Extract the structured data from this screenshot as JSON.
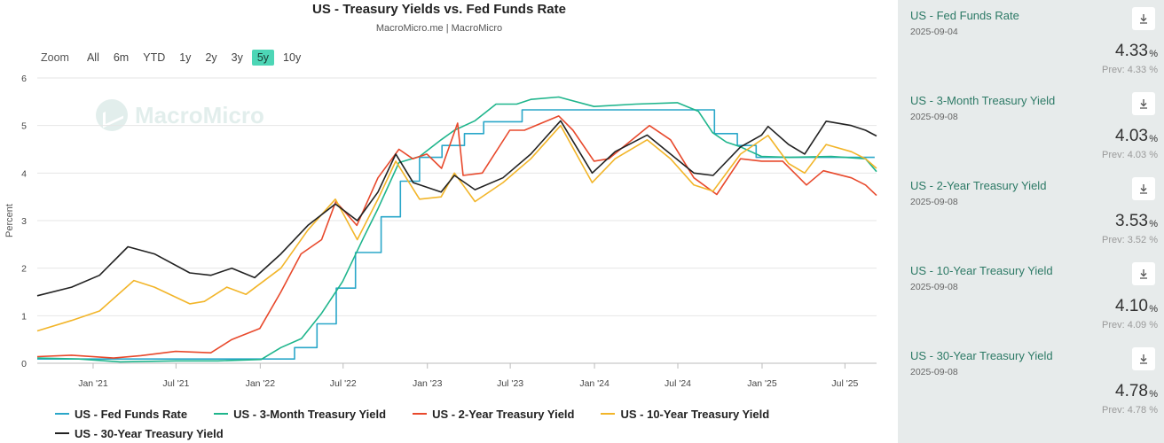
{
  "chart_data": {
    "type": "line",
    "title": "US - Treasury Yields vs. Fed Funds Rate",
    "subtitle": "MacroMicro.me | MacroMicro",
    "ylabel": "Percent",
    "ylim": [
      0,
      6
    ],
    "yticks": [
      0,
      1,
      2,
      3,
      4,
      5,
      6
    ],
    "xlim": [
      "2020-09-01",
      "2025-09-08"
    ],
    "xticks": [
      {
        "date": "2021-01-01",
        "label": "Jan '21"
      },
      {
        "date": "2021-07-01",
        "label": "Jul '21"
      },
      {
        "date": "2022-01-01",
        "label": "Jan '22"
      },
      {
        "date": "2022-07-01",
        "label": "Jul '22"
      },
      {
        "date": "2023-01-01",
        "label": "Jan '23"
      },
      {
        "date": "2023-07-01",
        "label": "Jul '23"
      },
      {
        "date": "2024-01-01",
        "label": "Jan '24"
      },
      {
        "date": "2024-07-01",
        "label": "Jul '24"
      },
      {
        "date": "2025-01-01",
        "label": "Jan '25"
      },
      {
        "date": "2025-07-01",
        "label": "Jul '25"
      }
    ],
    "grid": true,
    "legend": "bottom",
    "series": [
      {
        "name": "US - Fed Funds Rate",
        "color": "#2aa7c9",
        "step": true,
        "points": [
          [
            "2020-09-01",
            0.09
          ],
          [
            "2022-03-17",
            0.33
          ],
          [
            "2022-05-05",
            0.83
          ],
          [
            "2022-06-16",
            1.58
          ],
          [
            "2022-07-28",
            2.33
          ],
          [
            "2022-09-22",
            3.08
          ],
          [
            "2022-11-03",
            3.83
          ],
          [
            "2022-12-15",
            4.33
          ],
          [
            "2023-02-02",
            4.58
          ],
          [
            "2023-03-23",
            4.83
          ],
          [
            "2023-05-04",
            5.08
          ],
          [
            "2023-07-27",
            5.33
          ],
          [
            "2024-09-19",
            4.83
          ],
          [
            "2024-11-08",
            4.58
          ],
          [
            "2024-12-19",
            4.33
          ],
          [
            "2025-09-04",
            4.33
          ]
        ]
      },
      {
        "name": "US - 3-Month Treasury Yield",
        "color": "#1fb58c",
        "points": [
          [
            "2020-09-01",
            0.11
          ],
          [
            "2020-12-01",
            0.09
          ],
          [
            "2021-03-01",
            0.03
          ],
          [
            "2021-07-01",
            0.05
          ],
          [
            "2021-10-01",
            0.05
          ],
          [
            "2022-01-03",
            0.08
          ],
          [
            "2022-02-15",
            0.33
          ],
          [
            "2022-04-01",
            0.52
          ],
          [
            "2022-05-15",
            1.05
          ],
          [
            "2022-06-30",
            1.72
          ],
          [
            "2022-08-15",
            2.65
          ],
          [
            "2022-09-15",
            3.25
          ],
          [
            "2022-10-31",
            4.22
          ],
          [
            "2022-12-15",
            4.35
          ],
          [
            "2023-01-31",
            4.7
          ],
          [
            "2023-03-01",
            4.9
          ],
          [
            "2023-04-15",
            5.1
          ],
          [
            "2023-05-31",
            5.45
          ],
          [
            "2023-07-15",
            5.45
          ],
          [
            "2023-08-15",
            5.55
          ],
          [
            "2023-10-15",
            5.6
          ],
          [
            "2023-12-31",
            5.4
          ],
          [
            "2024-03-31",
            5.45
          ],
          [
            "2024-06-30",
            5.48
          ],
          [
            "2024-08-15",
            5.3
          ],
          [
            "2024-09-15",
            4.85
          ],
          [
            "2024-10-15",
            4.65
          ],
          [
            "2024-11-15",
            4.55
          ],
          [
            "2024-12-31",
            4.35
          ],
          [
            "2025-03-01",
            4.33
          ],
          [
            "2025-06-01",
            4.35
          ],
          [
            "2025-08-15",
            4.3
          ],
          [
            "2025-09-08",
            4.03
          ]
        ]
      },
      {
        "name": "US - 2-Year Treasury Yield",
        "color": "#e8492c",
        "points": [
          [
            "2020-09-01",
            0.14
          ],
          [
            "2020-11-15",
            0.17
          ],
          [
            "2021-02-15",
            0.11
          ],
          [
            "2021-04-15",
            0.16
          ],
          [
            "2021-06-30",
            0.25
          ],
          [
            "2021-09-15",
            0.22
          ],
          [
            "2021-10-31",
            0.5
          ],
          [
            "2021-12-31",
            0.73
          ],
          [
            "2022-02-15",
            1.5
          ],
          [
            "2022-03-31",
            2.3
          ],
          [
            "2022-05-15",
            2.6
          ],
          [
            "2022-06-15",
            3.4
          ],
          [
            "2022-07-31",
            2.9
          ],
          [
            "2022-09-15",
            3.9
          ],
          [
            "2022-10-31",
            4.5
          ],
          [
            "2022-11-30",
            4.3
          ],
          [
            "2022-12-31",
            4.4
          ],
          [
            "2023-02-01",
            4.1
          ],
          [
            "2023-03-08",
            5.05
          ],
          [
            "2023-03-20",
            3.95
          ],
          [
            "2023-05-01",
            4.0
          ],
          [
            "2023-06-30",
            4.9
          ],
          [
            "2023-08-01",
            4.9
          ],
          [
            "2023-10-15",
            5.2
          ],
          [
            "2023-11-15",
            4.9
          ],
          [
            "2023-12-31",
            4.25
          ],
          [
            "2024-02-01",
            4.3
          ],
          [
            "2024-04-30",
            5.0
          ],
          [
            "2024-06-15",
            4.7
          ],
          [
            "2024-08-05",
            3.9
          ],
          [
            "2024-09-24",
            3.55
          ],
          [
            "2024-11-15",
            4.3
          ],
          [
            "2024-12-31",
            4.25
          ],
          [
            "2025-02-15",
            4.25
          ],
          [
            "2025-04-08",
            3.75
          ],
          [
            "2025-05-15",
            4.05
          ],
          [
            "2025-07-15",
            3.9
          ],
          [
            "2025-08-15",
            3.75
          ],
          [
            "2025-09-08",
            3.53
          ]
        ]
      },
      {
        "name": "US - 10-Year Treasury Yield",
        "color": "#f2b529",
        "points": [
          [
            "2020-09-01",
            0.68
          ],
          [
            "2020-11-15",
            0.9
          ],
          [
            "2021-01-15",
            1.1
          ],
          [
            "2021-03-31",
            1.74
          ],
          [
            "2021-05-15",
            1.6
          ],
          [
            "2021-07-31",
            1.25
          ],
          [
            "2021-09-01",
            1.3
          ],
          [
            "2021-10-20",
            1.6
          ],
          [
            "2021-12-01",
            1.45
          ],
          [
            "2022-02-15",
            2.0
          ],
          [
            "2022-04-15",
            2.8
          ],
          [
            "2022-06-14",
            3.45
          ],
          [
            "2022-08-01",
            2.6
          ],
          [
            "2022-09-15",
            3.45
          ],
          [
            "2022-10-24",
            4.25
          ],
          [
            "2022-12-15",
            3.45
          ],
          [
            "2023-01-31",
            3.5
          ],
          [
            "2023-03-01",
            4.0
          ],
          [
            "2023-04-15",
            3.4
          ],
          [
            "2023-06-15",
            3.8
          ],
          [
            "2023-08-15",
            4.3
          ],
          [
            "2023-10-19",
            5.0
          ],
          [
            "2023-12-27",
            3.8
          ],
          [
            "2024-02-15",
            4.3
          ],
          [
            "2024-04-25",
            4.7
          ],
          [
            "2024-06-15",
            4.3
          ],
          [
            "2024-08-05",
            3.75
          ],
          [
            "2024-09-16",
            3.62
          ],
          [
            "2024-11-15",
            4.4
          ],
          [
            "2025-01-14",
            4.79
          ],
          [
            "2025-02-28",
            4.2
          ],
          [
            "2025-04-04",
            4.0
          ],
          [
            "2025-05-21",
            4.6
          ],
          [
            "2025-07-15",
            4.45
          ],
          [
            "2025-08-15",
            4.3
          ],
          [
            "2025-09-08",
            4.1
          ]
        ]
      },
      {
        "name": "US - 30-Year Treasury Yield",
        "color": "#222222",
        "points": [
          [
            "2020-09-01",
            1.42
          ],
          [
            "2020-11-15",
            1.6
          ],
          [
            "2021-01-15",
            1.85
          ],
          [
            "2021-03-18",
            2.45
          ],
          [
            "2021-05-15",
            2.3
          ],
          [
            "2021-07-31",
            1.9
          ],
          [
            "2021-09-15",
            1.85
          ],
          [
            "2021-10-31",
            2.0
          ],
          [
            "2021-12-20",
            1.8
          ],
          [
            "2022-02-15",
            2.3
          ],
          [
            "2022-04-15",
            2.9
          ],
          [
            "2022-06-14",
            3.35
          ],
          [
            "2022-08-01",
            3.0
          ],
          [
            "2022-09-15",
            3.6
          ],
          [
            "2022-10-24",
            4.4
          ],
          [
            "2022-12-01",
            3.8
          ],
          [
            "2023-01-31",
            3.6
          ],
          [
            "2023-03-01",
            3.95
          ],
          [
            "2023-04-15",
            3.65
          ],
          [
            "2023-06-15",
            3.9
          ],
          [
            "2023-08-15",
            4.4
          ],
          [
            "2023-10-19",
            5.1
          ],
          [
            "2023-12-27",
            4.0
          ],
          [
            "2024-02-15",
            4.45
          ],
          [
            "2024-04-25",
            4.8
          ],
          [
            "2024-06-15",
            4.4
          ],
          [
            "2024-08-05",
            4.0
          ],
          [
            "2024-09-16",
            3.95
          ],
          [
            "2024-11-15",
            4.55
          ],
          [
            "2024-12-31",
            4.8
          ],
          [
            "2025-01-14",
            4.98
          ],
          [
            "2025-02-28",
            4.6
          ],
          [
            "2025-04-04",
            4.4
          ],
          [
            "2025-05-21",
            5.09
          ],
          [
            "2025-07-15",
            5.0
          ],
          [
            "2025-08-15",
            4.9
          ],
          [
            "2025-09-08",
            4.78
          ]
        ]
      }
    ]
  },
  "zoom": {
    "label": "Zoom",
    "options": [
      "All",
      "6m",
      "YTD",
      "1y",
      "2y",
      "3y",
      "5y",
      "10y"
    ],
    "active": "5y"
  },
  "watermark_text": "MacroMicro",
  "accent_color": "#4dd6b6",
  "sidebar": {
    "cards": [
      {
        "title": "US - Fed Funds Rate",
        "date": "2025-09-04",
        "value": "4.33",
        "unit": "%",
        "prev": "Prev: 4.33 %",
        "icon": "download-icon"
      },
      {
        "title": "US - 3-Month Treasury Yield",
        "date": "2025-09-08",
        "value": "4.03",
        "unit": "%",
        "prev": "Prev: 4.03 %",
        "icon": "download-icon"
      },
      {
        "title": "US - 2-Year Treasury Yield",
        "date": "2025-09-08",
        "value": "3.53",
        "unit": "%",
        "prev": "Prev: 3.52 %",
        "icon": "download-icon"
      },
      {
        "title": "US - 10-Year Treasury Yield",
        "date": "2025-09-08",
        "value": "4.10",
        "unit": "%",
        "prev": "Prev: 4.09 %",
        "icon": "download-icon"
      },
      {
        "title": "US - 30-Year Treasury Yield",
        "date": "2025-09-08",
        "value": "4.78",
        "unit": "%",
        "prev": "Prev: 4.78 %",
        "icon": "download-icon"
      }
    ]
  }
}
